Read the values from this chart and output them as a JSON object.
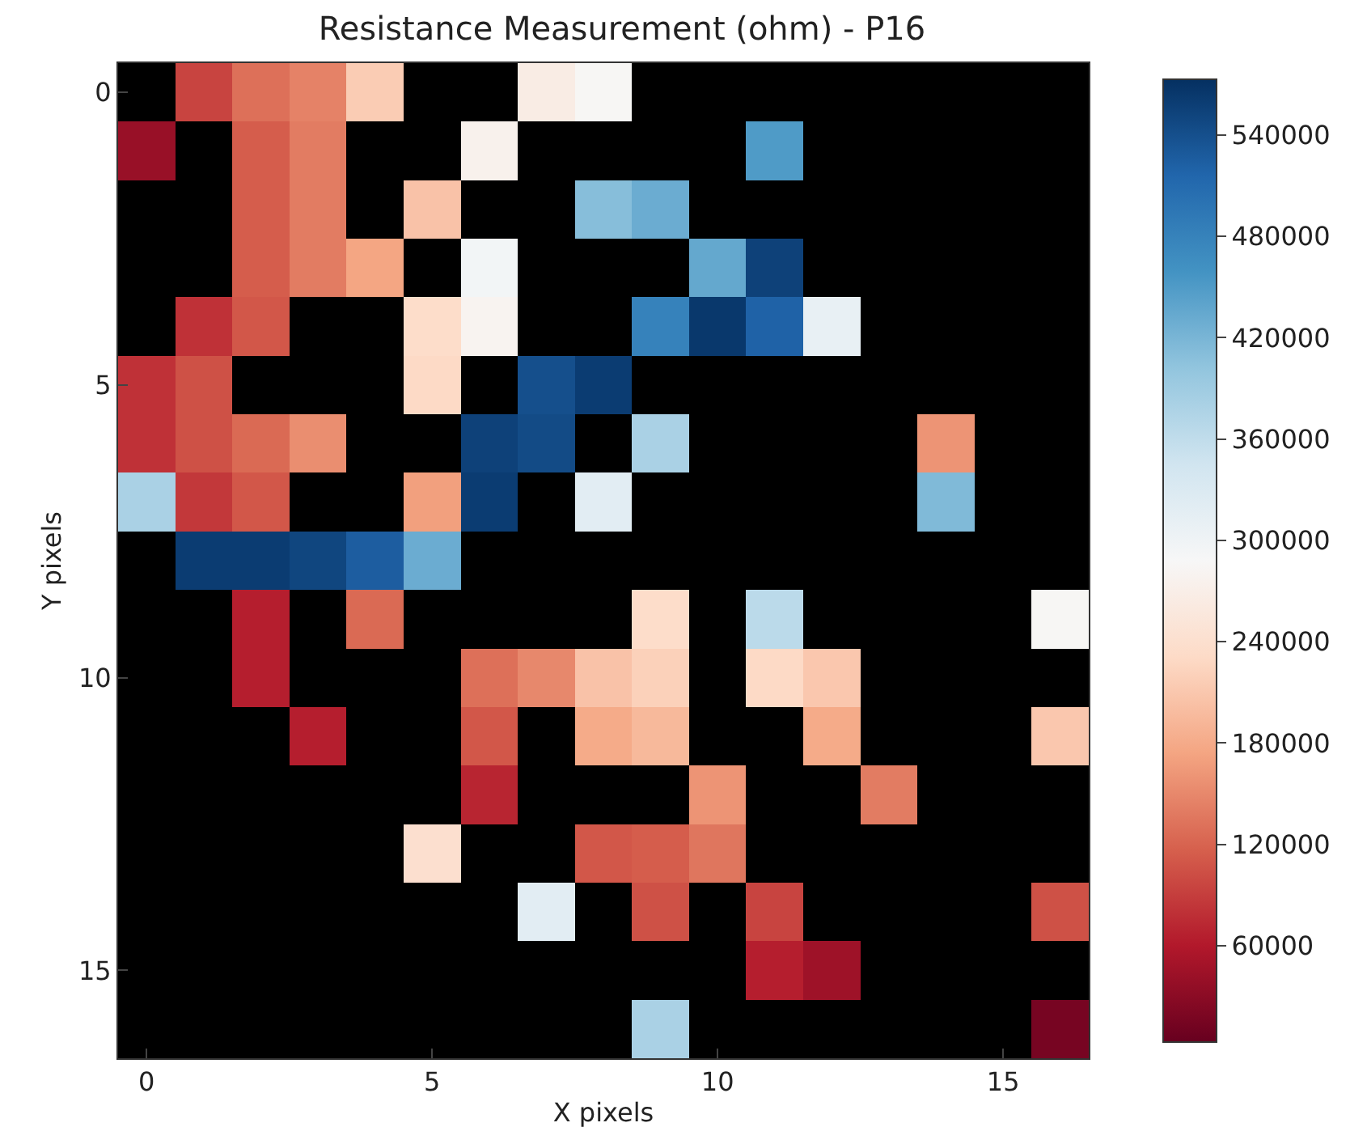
{
  "chart_data": {
    "type": "heatmap",
    "title": "Resistance Measurement (ohm) - P16",
    "xlabel": "X pixels",
    "ylabel": "Y pixels",
    "x": [
      0,
      1,
      2,
      3,
      4,
      5,
      6,
      7,
      8,
      9,
      10,
      11,
      12,
      13,
      14,
      15,
      16
    ],
    "xlim": [
      -0.5,
      16.5
    ],
    "xticks": [
      0,
      5,
      10,
      15
    ],
    "ylim": [
      16.5,
      -0.5
    ],
    "yticks": [
      0,
      5,
      10,
      15
    ],
    "clim": [
      3000,
      573000
    ],
    "cticks": [
      60000,
      120000,
      180000,
      240000,
      300000,
      360000,
      420000,
      480000,
      540000
    ],
    "cells": [
      [
        null,
        95000,
        130000,
        145000,
        215000,
        null,
        null,
        265000,
        285000,
        null,
        null,
        null,
        null,
        null,
        null,
        null,
        null
      ],
      [
        40000,
        null,
        115000,
        140000,
        null,
        null,
        275000,
        null,
        null,
        null,
        null,
        450000,
        null,
        null,
        null,
        null,
        null
      ],
      [
        null,
        null,
        115000,
        140000,
        null,
        205000,
        null,
        null,
        410000,
        430000,
        null,
        null,
        null,
        null,
        null,
        null,
        null
      ],
      [
        null,
        null,
        115000,
        140000,
        175000,
        null,
        295000,
        null,
        null,
        null,
        435000,
        555000,
        null,
        null,
        null,
        null,
        null
      ],
      [
        null,
        80000,
        110000,
        null,
        null,
        235000,
        280000,
        null,
        null,
        480000,
        565000,
        520000,
        310000,
        null,
        null,
        null,
        null
      ],
      [
        80000,
        105000,
        null,
        null,
        null,
        230000,
        null,
        540000,
        560000,
        null,
        null,
        null,
        null,
        null,
        null,
        null,
        null
      ],
      [
        80000,
        105000,
        125000,
        155000,
        null,
        null,
        555000,
        545000,
        null,
        380000,
        null,
        null,
        null,
        null,
        160000,
        null,
        null
      ],
      [
        380000,
        85000,
        110000,
        null,
        null,
        170000,
        560000,
        null,
        320000,
        null,
        null,
        null,
        null,
        null,
        415000,
        null,
        null
      ],
      [
        null,
        560000,
        560000,
        550000,
        525000,
        430000,
        null,
        null,
        null,
        null,
        null,
        null,
        null,
        null,
        null,
        null,
        null
      ],
      [
        null,
        null,
        65000,
        null,
        125000,
        null,
        null,
        null,
        null,
        235000,
        null,
        365000,
        null,
        null,
        null,
        null,
        285000
      ],
      [
        null,
        null,
        65000,
        null,
        null,
        null,
        130000,
        150000,
        205000,
        220000,
        null,
        230000,
        210000,
        null,
        null,
        null,
        null
      ],
      [
        null,
        null,
        null,
        65000,
        null,
        null,
        110000,
        null,
        180000,
        195000,
        null,
        null,
        180000,
        null,
        null,
        null,
        210000
      ],
      [
        null,
        null,
        null,
        null,
        null,
        null,
        70000,
        null,
        null,
        null,
        160000,
        null,
        null,
        140000,
        null,
        null,
        null
      ],
      [
        null,
        null,
        null,
        null,
        null,
        240000,
        null,
        null,
        110000,
        115000,
        135000,
        null,
        null,
        null,
        null,
        null,
        null
      ],
      [
        null,
        null,
        null,
        null,
        null,
        null,
        null,
        320000,
        null,
        105000,
        null,
        95000,
        null,
        null,
        null,
        null,
        105000
      ],
      [
        null,
        null,
        null,
        null,
        null,
        null,
        null,
        null,
        null,
        null,
        null,
        65000,
        45000,
        null,
        null,
        null,
        null
      ],
      [
        null,
        null,
        null,
        null,
        null,
        null,
        null,
        null,
        null,
        380000,
        null,
        null,
        null,
        null,
        null,
        null,
        15000
      ]
    ]
  }
}
